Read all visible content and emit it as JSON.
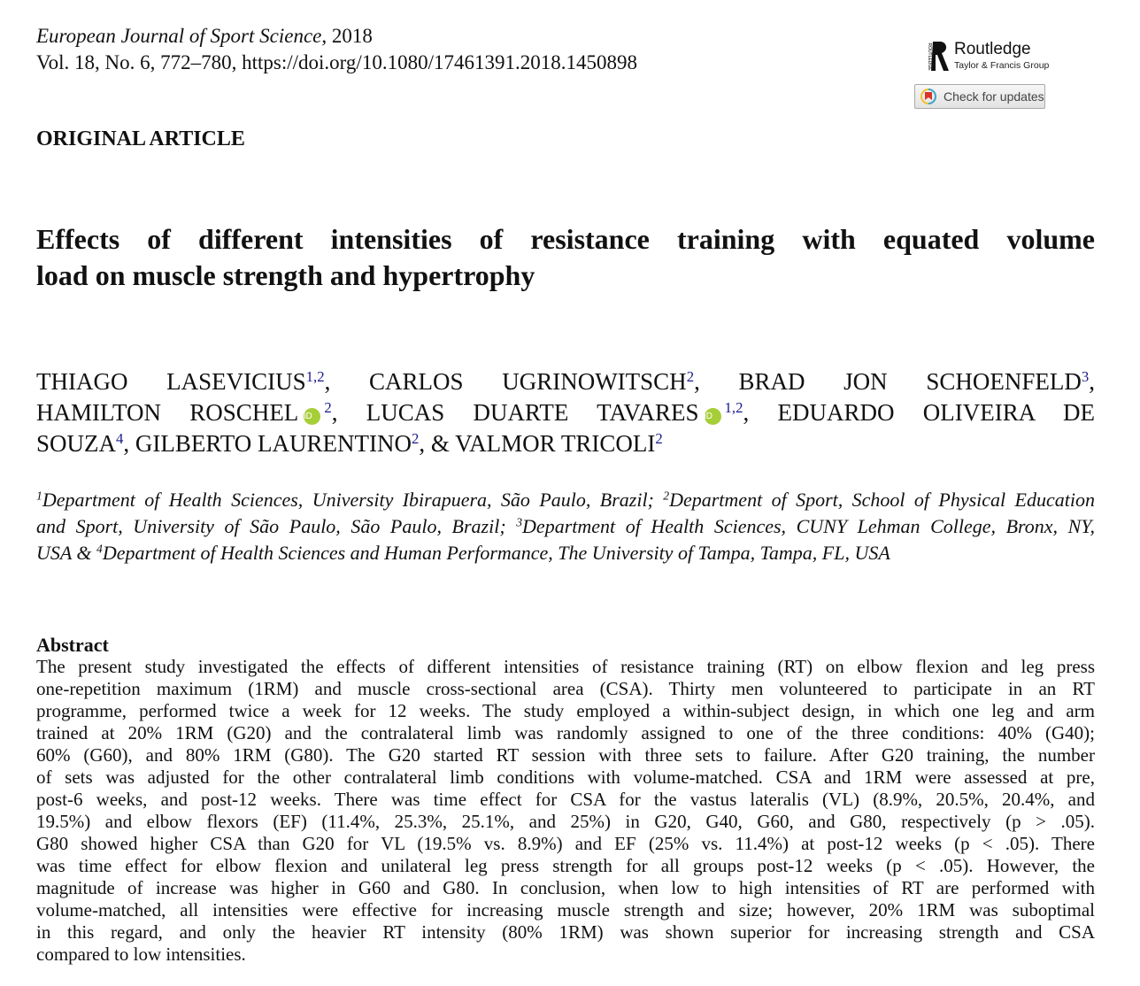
{
  "header": {
    "journal": "European Journal of Sport Science",
    "year": ", 2018",
    "citation": "Vol. 18, No. 6, 772–780, https://doi.org/10.1080/17461391.2018.1450898"
  },
  "publisher": {
    "name": "Routledge",
    "group": "Taylor & Francis Group",
    "vertical": "ROUTLEDGE",
    "check_updates": "Check for updates"
  },
  "section": "ORIGINAL ARTICLE",
  "title": [
    "Effects of different intensities of resistance training with equated volume",
    "load on muscle strength and hypertrophy"
  ],
  "authors": {
    "a1": "THIAGO LASEVICIUS",
    "s1": "1,2",
    "a2": ", CARLOS UGRINOWITSCH",
    "s2": "2",
    "a3": ", BRAD JON SCHOENFELD",
    "s3": "3",
    "a3e": ",",
    "a4": "HAMILTON ROSCHEL",
    "s4": "2",
    "a5": ", LUCAS DUARTE TAVARES",
    "s5": "1,2",
    "a6": ", EDUARDO OLIVEIRA DE",
    "a7": "SOUZA",
    "s7": "4",
    "a8": ", GILBERTO LAURENTINO",
    "s8": "2",
    "a9": ", & VALMOR TRICOLI",
    "s9": "2",
    "orcid": "iD"
  },
  "affiliations": {
    "s1": "1",
    "t1": "Department of Health Sciences, University Ibirapuera, São Paulo, Brazil; ",
    "s2": "2",
    "t2": "Department of Sport, School of Physical Education",
    "t2b": "and Sport, University of São Paulo, São Paulo, Brazil; ",
    "s3": "3",
    "t3": "Department of Health Sciences, CUNY Lehman College, Bronx, NY,",
    "t3b": "USA & ",
    "s4": "4",
    "t4": "Department of Health Sciences and Human Performance, The University of Tampa, Tampa, FL, USA"
  },
  "abstract": {
    "heading": "Abstract",
    "lines": [
      "The present study investigated the effects of different intensities of resistance training (RT) on elbow flexion and leg press",
      "one-repetition maximum (1RM) and muscle cross-sectional area (CSA). Thirty men volunteered to participate in an RT",
      "programme, performed twice a week for 12 weeks. The study employed a within-subject design, in which one leg and arm",
      "trained at 20% 1RM (G20) and the contralateral limb was randomly assigned to one of the three conditions: 40% (G40);",
      "60% (G60), and 80% 1RM (G80). The G20 started RT session with three sets to failure. After G20 training, the number",
      "of sets was adjusted for the other contralateral limb conditions with volume-matched. CSA and 1RM were assessed at pre,",
      "post-6 weeks, and post-12 weeks. There was time effect for CSA for the vastus lateralis (VL) (8.9%, 20.5%, 20.4%, and",
      "19.5%) and elbow flexors (EF) (11.4%, 25.3%, 25.1%, and 25%) in G20, G40, G60, and G80, respectively (p > .05).",
      "G80 showed higher CSA than G20 for VL (19.5% vs. 8.9%) and EF (25% vs. 11.4%) at post-12 weeks (p < .05). There",
      "was time effect for elbow flexion and unilateral leg press strength for all groups post-12 weeks (p < .05). However, the",
      "magnitude of increase was higher in G60 and G80. In conclusion, when low to high intensities of RT are performed with",
      "volume-matched, all intensities were effective for increasing muscle strength and size; however, 20% 1RM was suboptimal",
      "in this regard, and only the heavier RT intensity (80% 1RM) was shown superior for increasing strength and CSA",
      "compared to low intensities."
    ]
  }
}
